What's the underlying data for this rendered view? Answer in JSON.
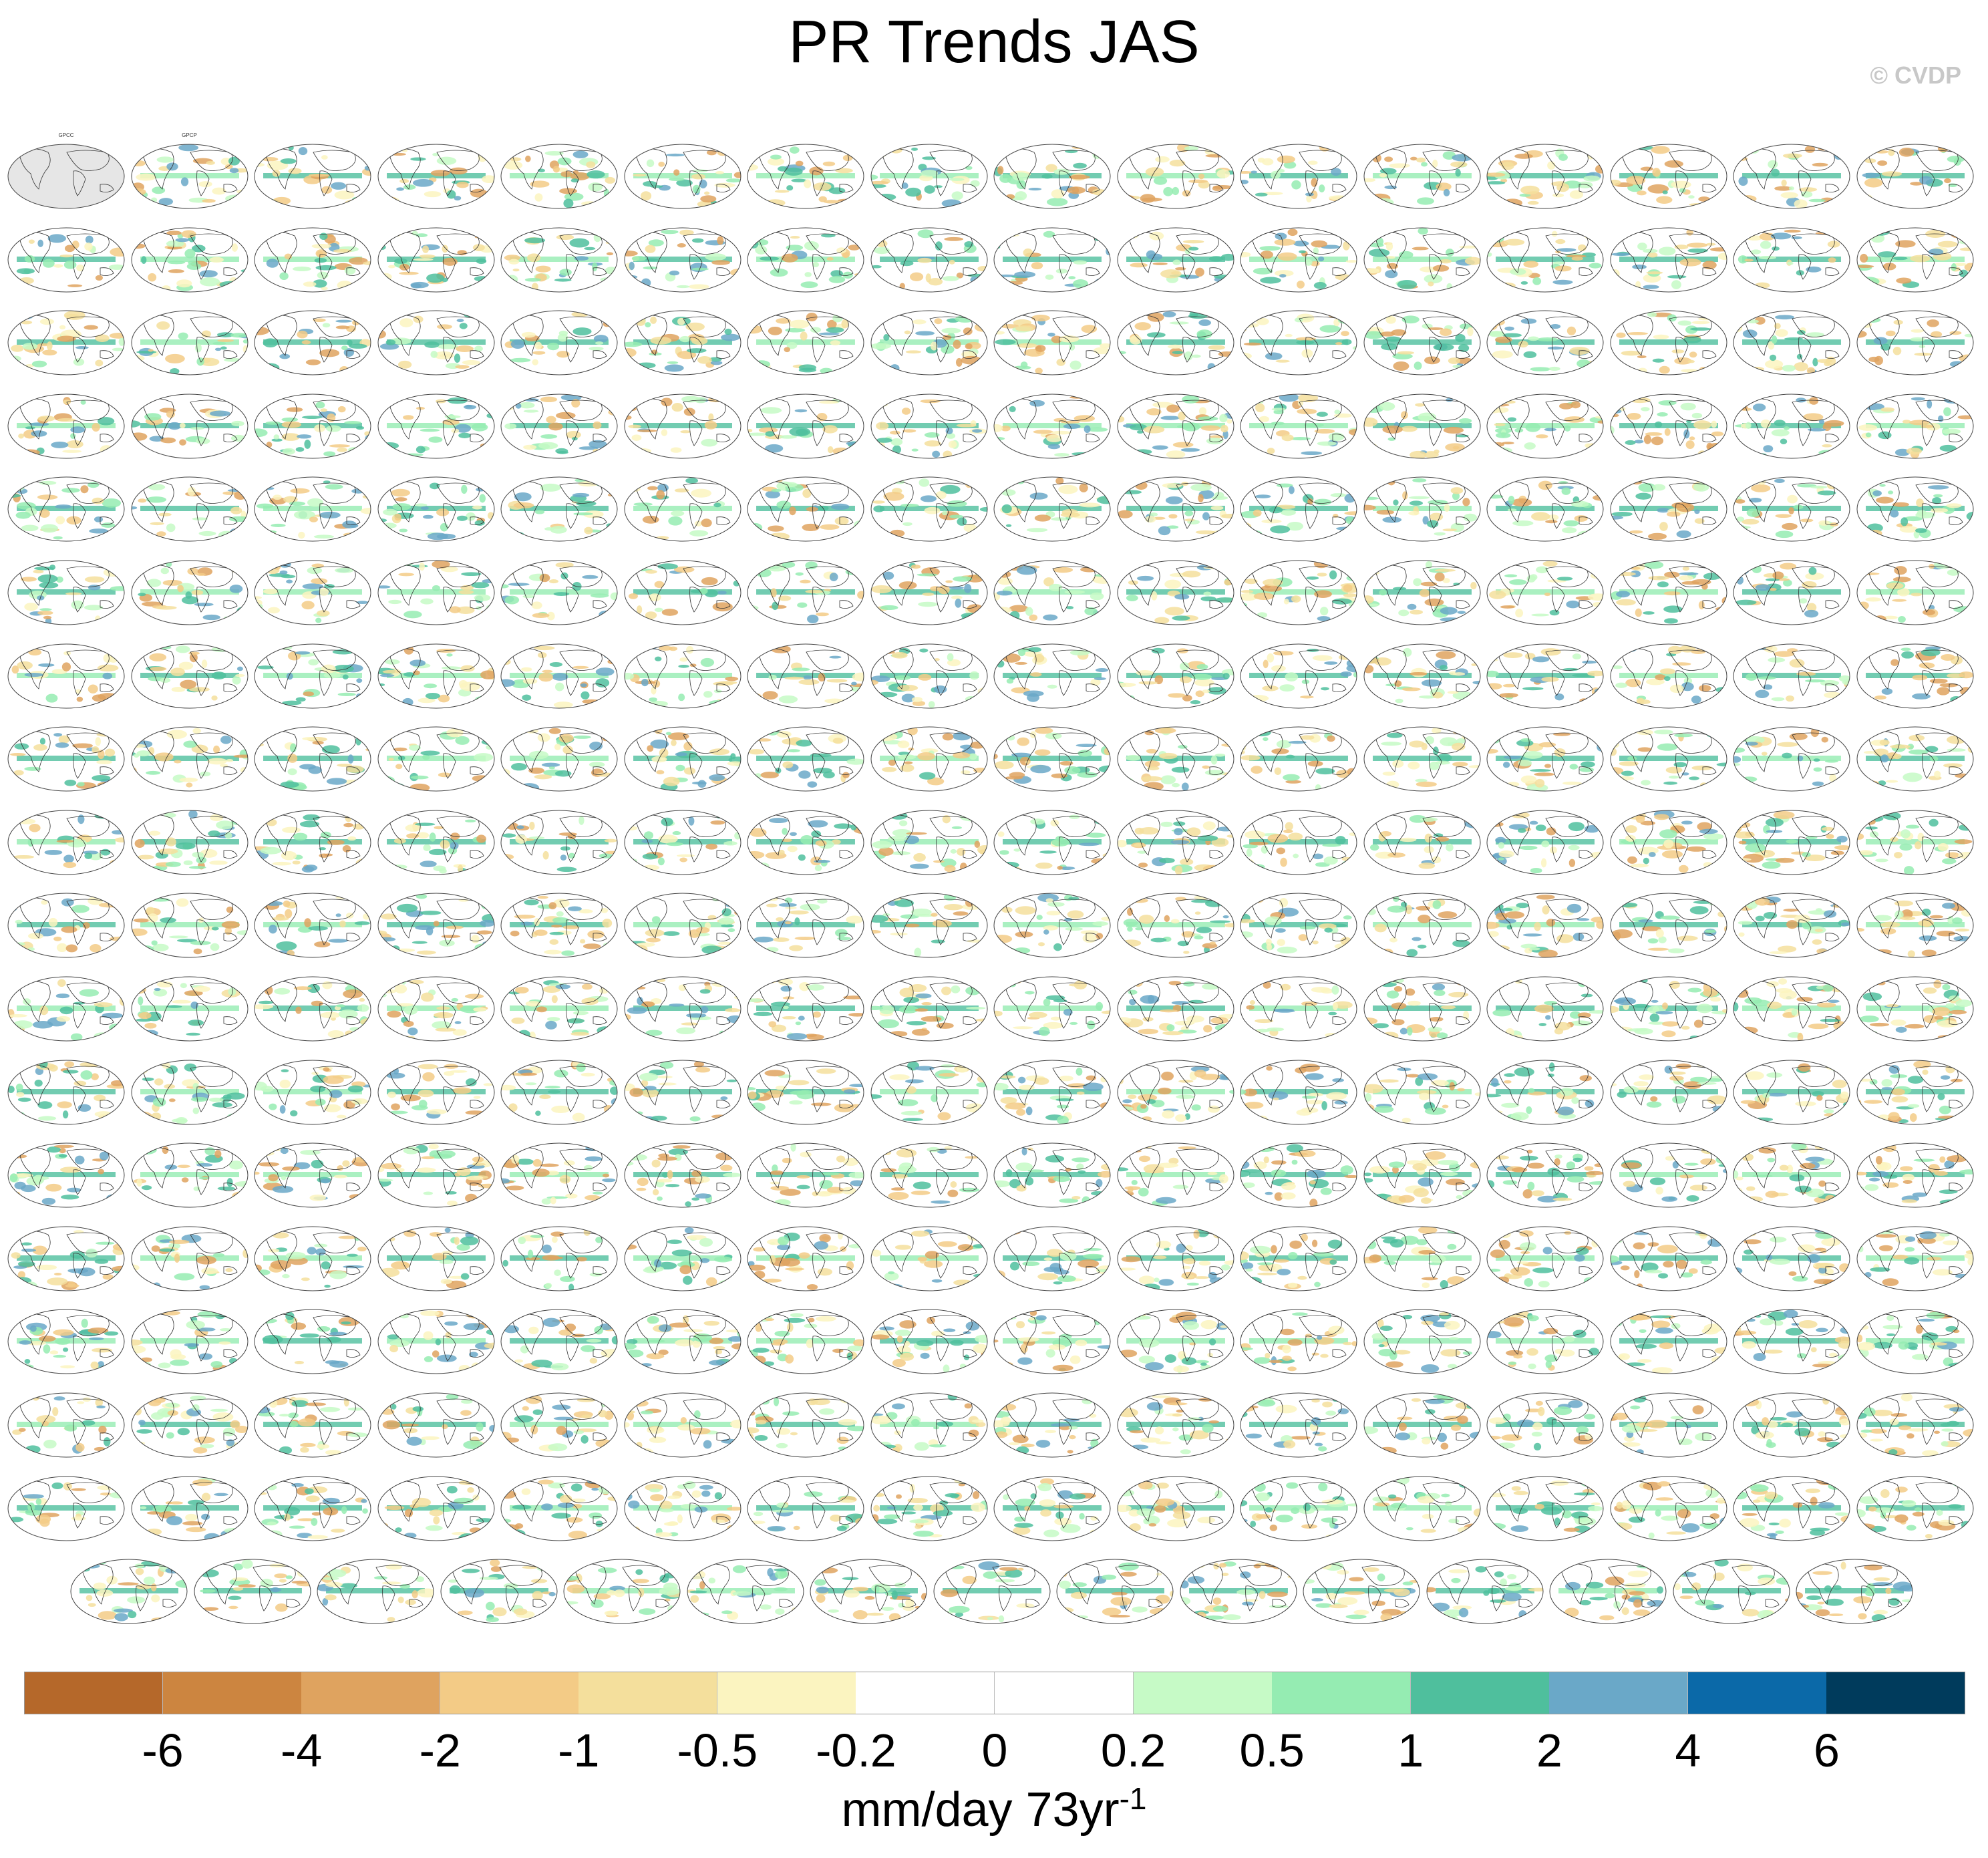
{
  "title": "PR Trends JAS",
  "credit": "© CVDP",
  "colors": {
    "land_observed_mask": "#e6e6e6",
    "map_background": "#ffffff",
    "coastline": "#333333",
    "title_access": "#2a6fb0",
    "title_canesm": "#5aa05a",
    "title_cesm1": "#c0392b",
    "title_cesm2": "#7b7bd6",
    "title_csiro": "#c8b060"
  },
  "panel_titles": [
    "GPCC",
    "GPCP"
  ],
  "panel_grid": {
    "full_rows": 17,
    "columns": 16,
    "last_row_panels": 15
  },
  "colorbar": {
    "colors": [
      "#b5682a",
      "#cc8540",
      "#dfa35f",
      "#f3cb86",
      "#f4df9c",
      "#fbf4c0",
      "#ffffff",
      "#ffffff",
      "#c6fac6",
      "#95ecb2",
      "#4fbf9d",
      "#6aa8c8",
      "#0b69a8",
      "#003b5c"
    ],
    "labels": [
      "-6",
      "-4",
      "-2",
      "-1",
      "-0.5",
      "-0.2",
      "0",
      "0.2",
      "0.5",
      "1",
      "2",
      "4",
      "6"
    ]
  },
  "units": {
    "text": "mm/day 73yr",
    "superscript": "-1"
  }
}
